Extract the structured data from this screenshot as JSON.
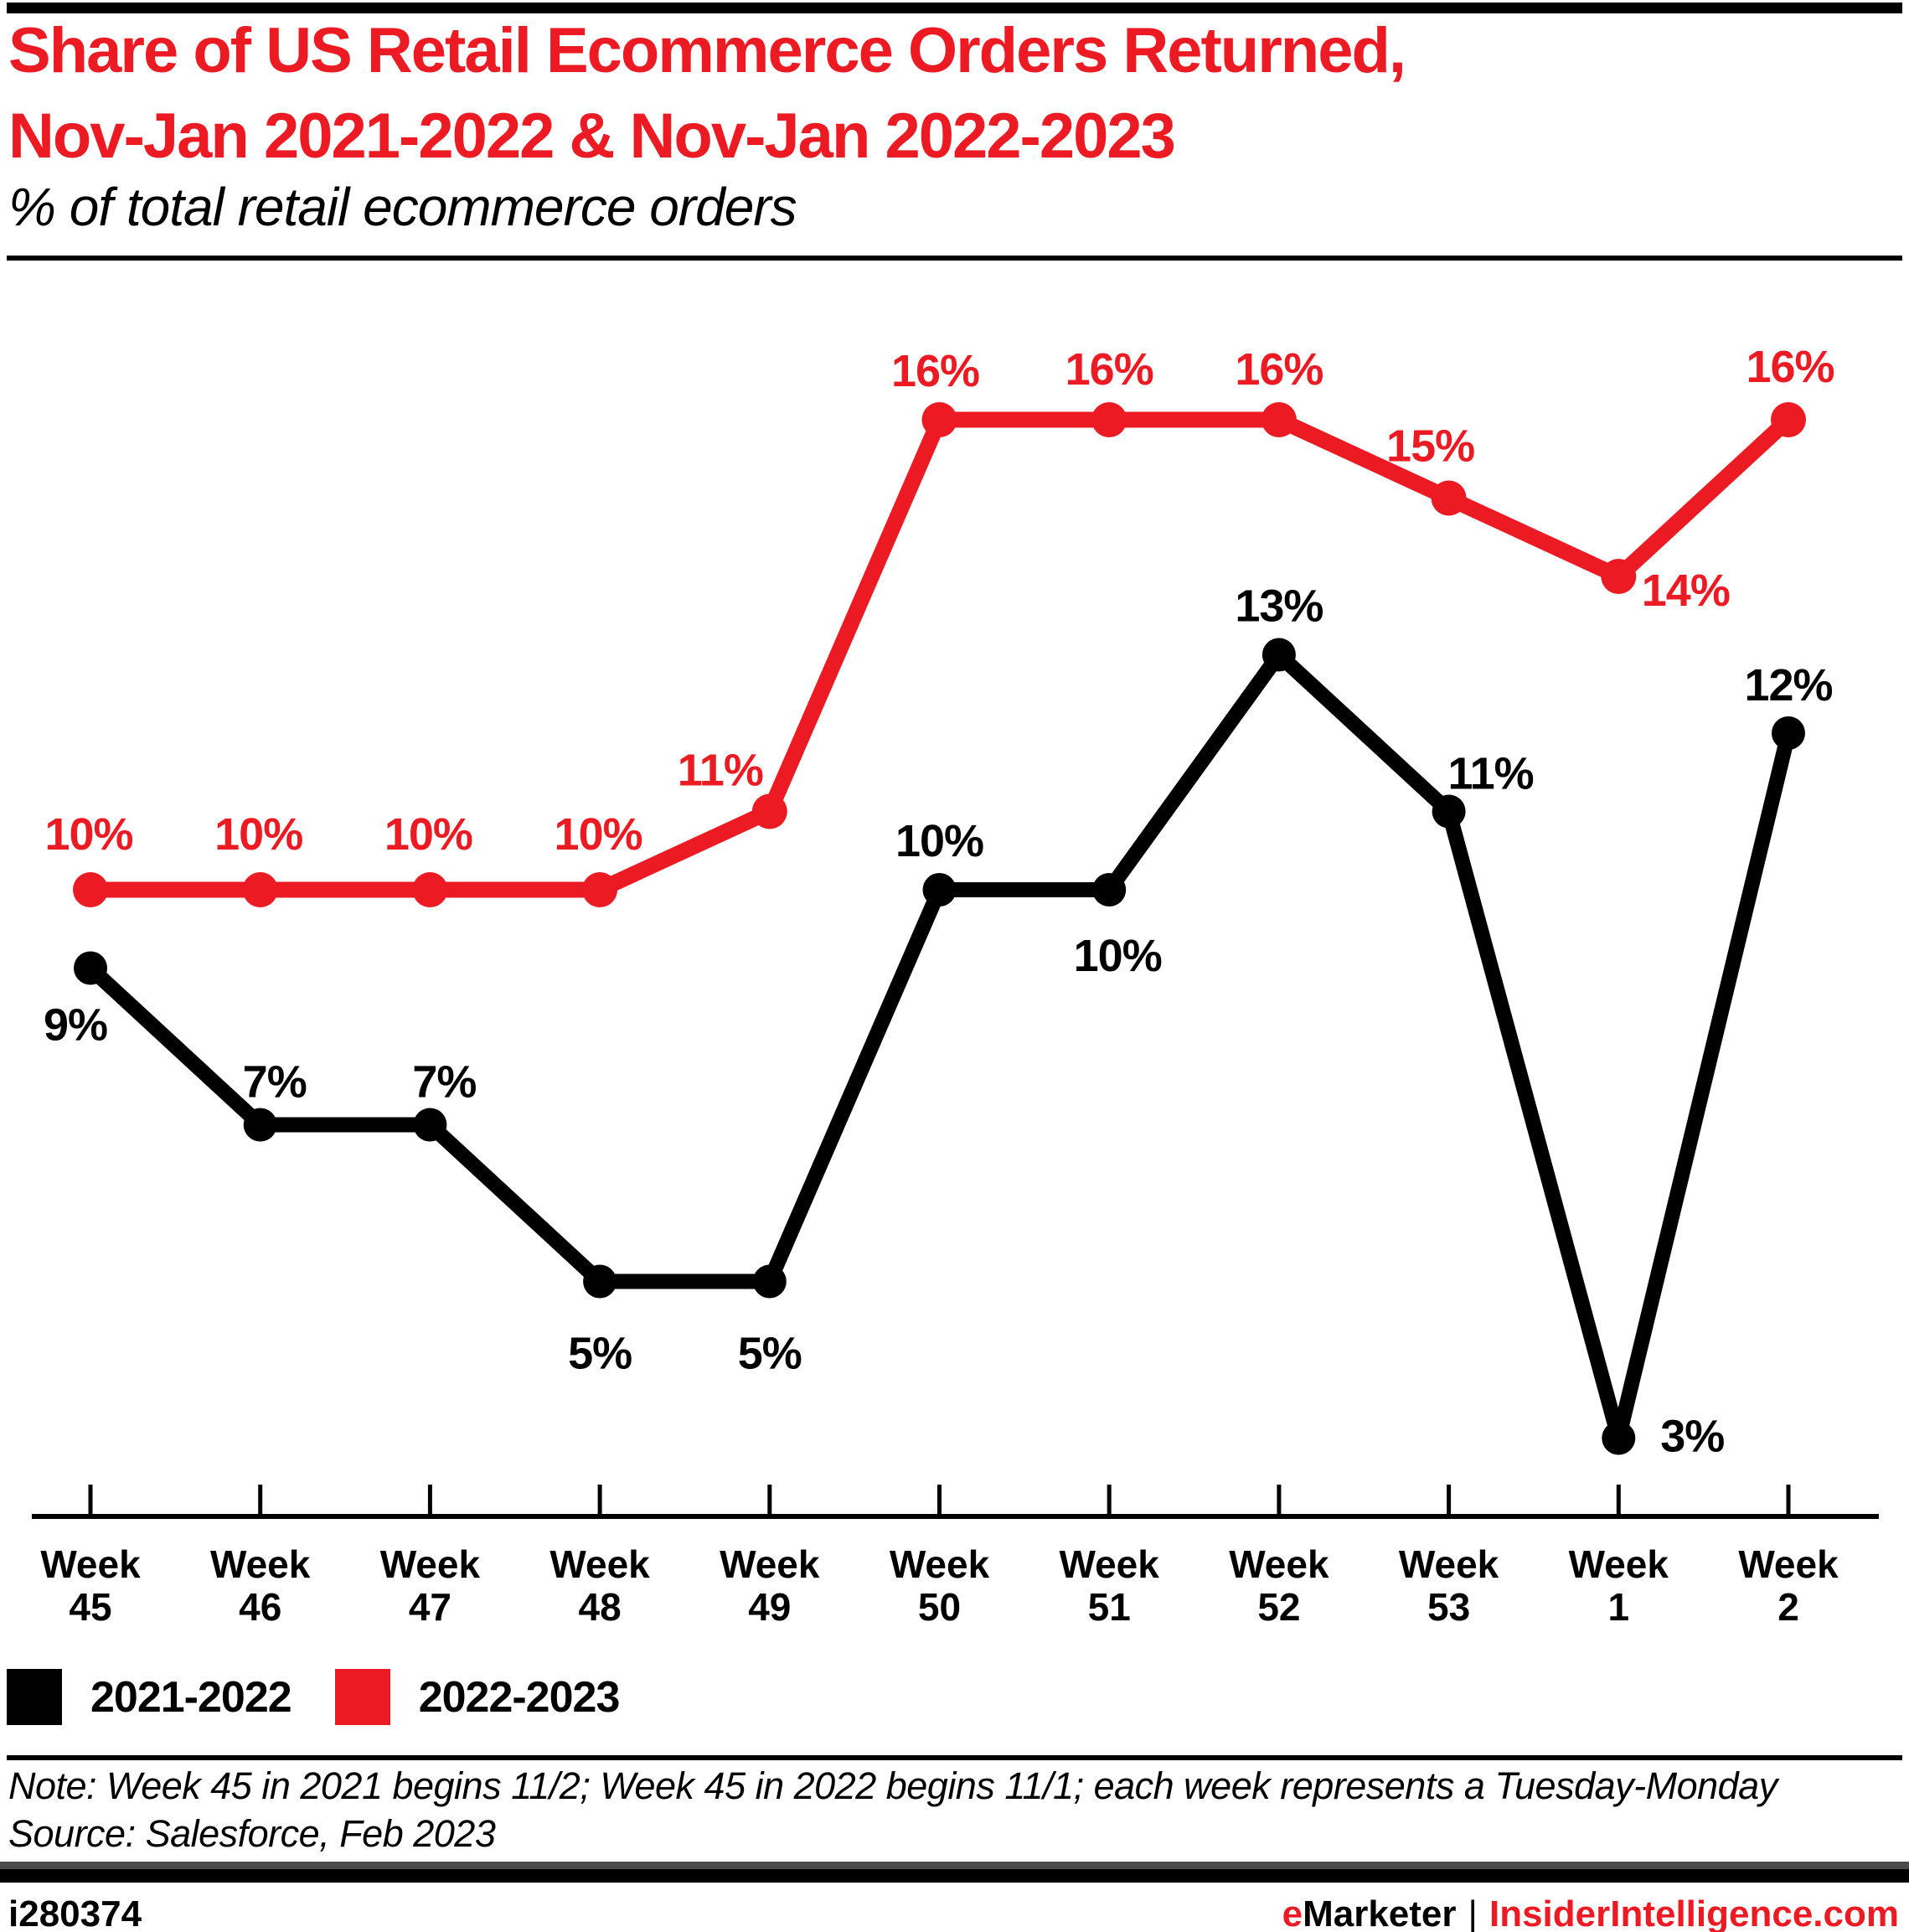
{
  "header": {
    "title_line1": "Share of US Retail Ecommerce Orders Returned,",
    "title_line2": "Nov-Jan 2021-2022 &amp; Nov-Jan 2022-2023",
    "subtitle": "% of total retail ecommerce orders"
  },
  "colors": {
    "accent_red": "#ec1b23",
    "series_black": "#000000",
    "footer_band_gray": "#4a4a4a"
  },
  "chart_data": {
    "type": "line",
    "title": "Share of US Retail Ecommerce Orders Returned, Nov-Jan 2021-2022 & Nov-Jan 2022-2023",
    "subtitle": "% of total retail ecommerce orders",
    "x_tick_prefix": "Week",
    "categories": [
      "45",
      "46",
      "47",
      "48",
      "49",
      "50",
      "51",
      "52",
      "53",
      "1",
      "2"
    ],
    "series": [
      {
        "name": "2021-2022",
        "color": "#000000",
        "values": [
          9,
          7,
          7,
          5,
          5,
          10,
          10,
          13,
          11,
          3,
          12
        ],
        "point_labels": [
          "9%",
          "7%",
          "7%",
          "5%",
          "5%",
          "10%",
          "10%",
          "13%",
          "11%",
          "3%",
          "12%"
        ],
        "label_offsets": [
          [
            -18,
            68
          ],
          [
            17,
            -51
          ],
          [
            17,
            -51
          ],
          [
            0,
            86
          ],
          [
            0,
            86
          ],
          [
            0,
            -58
          ],
          [
            10,
            79
          ],
          [
            0,
            -58
          ],
          [
            50,
            -45
          ],
          [
            88,
            -2
          ],
          [
            0,
            -57
          ]
        ]
      },
      {
        "name": "2022-2023",
        "color": "#ec1b23",
        "values": [
          10,
          10,
          10,
          10,
          11,
          16,
          16,
          16,
          15,
          14,
          16
        ],
        "point_labels": [
          "10%",
          "10%",
          "10%",
          "10%",
          "11%",
          "16%",
          "16%",
          "16%",
          "15%",
          "14%",
          "16%"
        ],
        "label_offsets": [
          [
            -2,
            -66
          ],
          [
            -2,
            -66
          ],
          [
            -2,
            -66
          ],
          [
            -2,
            -66
          ],
          [
            -59,
            -49
          ],
          [
            -5,
            -58
          ],
          [
            0,
            -60
          ],
          [
            0,
            -60
          ],
          [
            -22,
            -62
          ],
          [
            80,
            17
          ],
          [
            2,
            -63
          ]
        ]
      }
    ],
    "ylim": [
      2,
      17.5
    ],
    "grid": false,
    "legend_position": "below-axis-left"
  },
  "legend_note": "Legend labels are bound from chart_data.series names",
  "note": "Note: Week 45 in 2021 begins 11/2; Week 45 in 2022 begins 11/1; each week represents a Tuesday-Monday",
  "source": "Source: Salesforce, Feb 2023",
  "footer": {
    "chart_id": "i280374",
    "brand_e": "e",
    "brand_rest": "Marketer",
    "separator": "|",
    "site": "InsiderIntelligence.com"
  }
}
